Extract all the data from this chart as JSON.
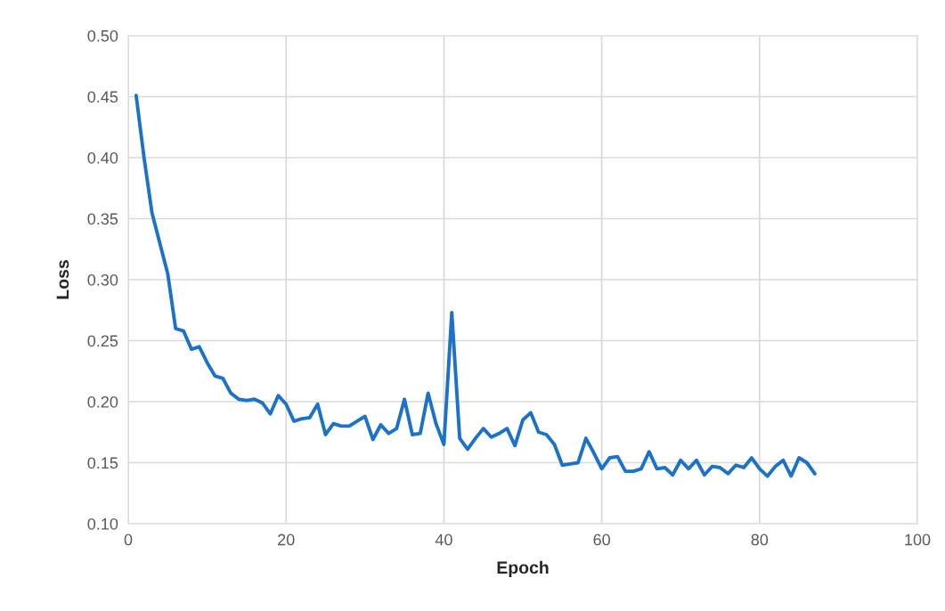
{
  "chart_data": {
    "type": "line",
    "xlabel": "Epoch",
    "ylabel": "Loss",
    "x": [
      1,
      2,
      3,
      4,
      5,
      6,
      7,
      8,
      9,
      10,
      11,
      12,
      13,
      14,
      15,
      16,
      17,
      18,
      19,
      20,
      21,
      22,
      23,
      24,
      25,
      26,
      27,
      28,
      29,
      30,
      31,
      32,
      33,
      34,
      35,
      36,
      37,
      38,
      39,
      40,
      41,
      42,
      43,
      44,
      45,
      46,
      47,
      48,
      49,
      50,
      51,
      52,
      53,
      54,
      55,
      56,
      57,
      58,
      59,
      60,
      61,
      62,
      63,
      64,
      65,
      66,
      67,
      68,
      69,
      70,
      71,
      72,
      73,
      74,
      75,
      76,
      77,
      78,
      79,
      80,
      81,
      82,
      83,
      84,
      85,
      86,
      87
    ],
    "series": [
      {
        "color": "#1a73c8",
        "values": [
          0.451,
          0.4,
          0.355,
          0.33,
          0.305,
          0.26,
          0.258,
          0.243,
          0.245,
          0.232,
          0.221,
          0.219,
          0.207,
          0.202,
          0.201,
          0.202,
          0.199,
          0.19,
          0.205,
          0.198,
          0.184,
          0.186,
          0.187,
          0.198,
          0.173,
          0.182,
          0.18,
          0.18,
          0.184,
          0.188,
          0.169,
          0.181,
          0.174,
          0.178,
          0.202,
          0.173,
          0.174,
          0.207,
          0.182,
          0.165,
          0.273,
          0.17,
          0.161,
          0.17,
          0.178,
          0.171,
          0.174,
          0.178,
          0.164,
          0.185,
          0.191,
          0.175,
          0.173,
          0.165,
          0.148,
          0.149,
          0.15,
          0.17,
          0.158,
          0.145,
          0.154,
          0.155,
          0.143,
          0.143,
          0.145,
          0.159,
          0.145,
          0.146,
          0.14,
          0.152,
          0.145,
          0.152,
          0.14,
          0.147,
          0.146,
          0.141,
          0.148,
          0.146,
          0.154,
          0.145,
          0.139,
          0.147,
          0.152,
          0.139,
          0.154,
          0.15,
          0.141
        ]
      }
    ],
    "xlim": [
      0,
      100
    ],
    "xticks": [
      0,
      20,
      40,
      60,
      80,
      100
    ],
    "ylim": [
      0.1,
      0.5
    ],
    "yticks": [
      {
        "value": 0.1,
        "label": "0.10"
      },
      {
        "value": 0.15,
        "label": "0.15"
      },
      {
        "value": 0.2,
        "label": "0.20"
      },
      {
        "value": 0.25,
        "label": "0.25"
      },
      {
        "value": 0.3,
        "label": "0.30"
      },
      {
        "value": 0.35,
        "label": "0.35"
      },
      {
        "value": 0.4,
        "label": "0.40"
      },
      {
        "value": 0.45,
        "label": "0.45"
      },
      {
        "value": 0.5,
        "label": "0.50"
      }
    ],
    "grid": true,
    "marker": "none",
    "line_style": "solid",
    "legend": false
  }
}
